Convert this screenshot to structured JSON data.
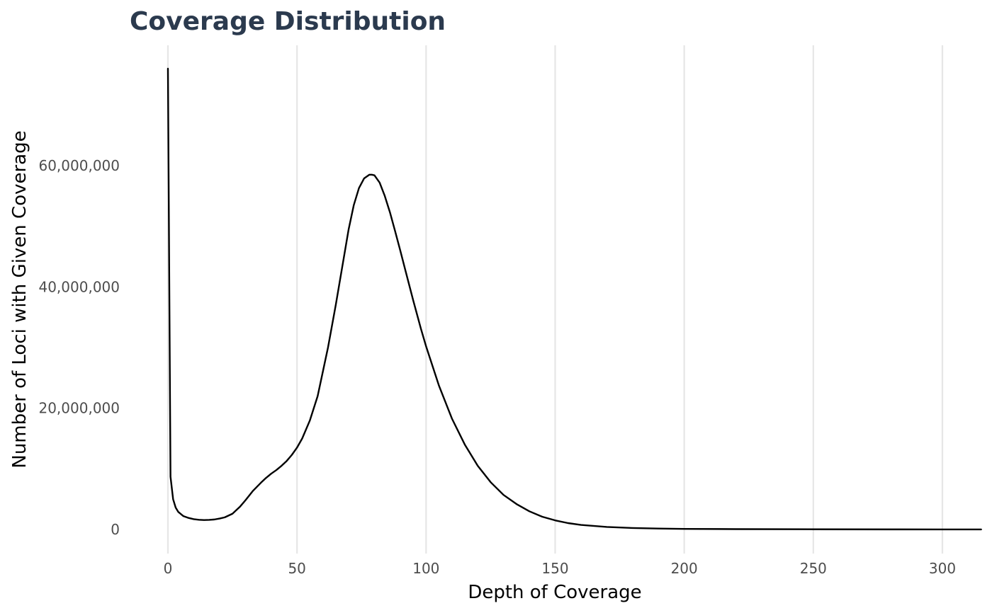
{
  "chart_data": {
    "type": "line",
    "title": "Coverage Distribution",
    "xlabel": "Depth of Coverage",
    "ylabel": "Number of Loci with Given Coverage",
    "xlim": [
      0,
      315
    ],
    "ylim": [
      0,
      76000000
    ],
    "x_ticks": [
      {
        "value": 0,
        "label": "0"
      },
      {
        "value": 50,
        "label": "50"
      },
      {
        "value": 100,
        "label": "100"
      },
      {
        "value": 150,
        "label": "150"
      },
      {
        "value": 200,
        "label": "200"
      },
      {
        "value": 250,
        "label": "250"
      },
      {
        "value": 300,
        "label": "300"
      }
    ],
    "y_ticks": [
      {
        "value": 0,
        "label": "0"
      },
      {
        "value": 20000000,
        "label": "20,000,000"
      },
      {
        "value": 40000000,
        "label": "40,000,000"
      },
      {
        "value": 60000000,
        "label": "60,000,000"
      }
    ],
    "grid": "vertical",
    "colors": {
      "line": "#000000",
      "grid": "#e6e6e6",
      "title": "#2b3a4e"
    },
    "series": [
      {
        "x": [
          0,
          1,
          2,
          3,
          4,
          6,
          8,
          10,
          12,
          14,
          16,
          18,
          20,
          22,
          25,
          28,
          30,
          33,
          36,
          38,
          40,
          42,
          44,
          46,
          48,
          50,
          52,
          55,
          58,
          60,
          62,
          65,
          68,
          70,
          72,
          74,
          76,
          78,
          79,
          80,
          82,
          84,
          86,
          88,
          90,
          92,
          95,
          98,
          100,
          105,
          110,
          115,
          120,
          125,
          130,
          135,
          140,
          145,
          150,
          155,
          160,
          170,
          180,
          190,
          200,
          220,
          250,
          280,
          300,
          315
        ],
        "y": [
          76000000,
          8700000,
          5000000,
          3600000,
          2900000,
          2200000,
          1900000,
          1700000,
          1600000,
          1550000,
          1580000,
          1650000,
          1800000,
          2000000,
          2600000,
          3800000,
          4800000,
          6400000,
          7700000,
          8500000,
          9200000,
          9800000,
          10500000,
          11300000,
          12300000,
          13500000,
          15000000,
          18000000,
          22000000,
          26000000,
          30000000,
          37000000,
          44500000,
          49500000,
          53500000,
          56300000,
          57900000,
          58500000,
          58500000,
          58400000,
          57200000,
          55000000,
          52300000,
          49200000,
          46000000,
          42700000,
          37800000,
          33100000,
          30200000,
          23700000,
          18300000,
          14000000,
          10500000,
          7800000,
          5700000,
          4200000,
          3000000,
          2100000,
          1500000,
          1050000,
          750000,
          420000,
          240000,
          150000,
          100000,
          60000,
          30000,
          15000,
          10000,
          5000
        ]
      }
    ]
  }
}
